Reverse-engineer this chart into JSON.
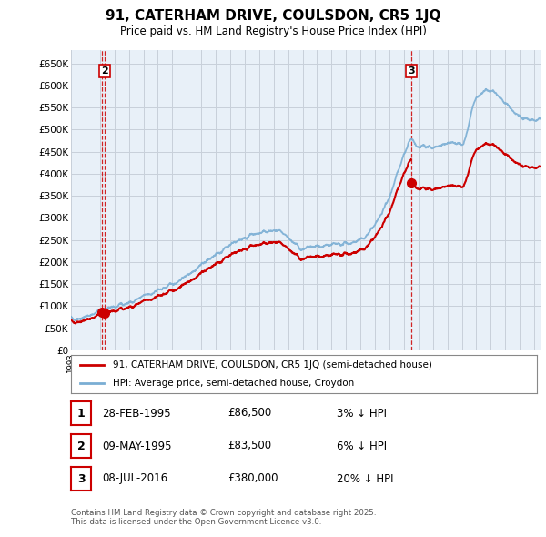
{
  "title1": "91, CATERHAM DRIVE, COULSDON, CR5 1JQ",
  "title2": "Price paid vs. HM Land Registry's House Price Index (HPI)",
  "ylim": [
    0,
    680000
  ],
  "yticks": [
    0,
    50000,
    100000,
    150000,
    200000,
    250000,
    300000,
    350000,
    400000,
    450000,
    500000,
    550000,
    600000,
    650000
  ],
  "ytick_labels": [
    "£0",
    "£50K",
    "£100K",
    "£150K",
    "£200K",
    "£250K",
    "£300K",
    "£350K",
    "£400K",
    "£450K",
    "£500K",
    "£550K",
    "£600K",
    "£650K"
  ],
  "background_color": "#ffffff",
  "chart_bg_color": "#e8f0f8",
  "grid_color": "#c8d0da",
  "sale_color": "#cc0000",
  "hpi_color": "#7aaed4",
  "transactions": [
    {
      "date_num": 1995.12,
      "price": 86500,
      "label": "1"
    },
    {
      "date_num": 1995.35,
      "price": 83500,
      "label": "2"
    },
    {
      "date_num": 2016.52,
      "price": 380000,
      "label": "3"
    }
  ],
  "legend_sale": "91, CATERHAM DRIVE, COULSDON, CR5 1JQ (semi-detached house)",
  "legend_hpi": "HPI: Average price, semi-detached house, Croydon",
  "table_rows": [
    {
      "num": "1",
      "date": "28-FEB-1995",
      "price": "£86,500",
      "pct": "3% ↓ HPI"
    },
    {
      "num": "2",
      "date": "09-MAY-1995",
      "price": "£83,500",
      "pct": "6% ↓ HPI"
    },
    {
      "num": "3",
      "date": "08-JUL-2016",
      "price": "£380,000",
      "pct": "20% ↓ HPI"
    }
  ],
  "footer": "Contains HM Land Registry data © Crown copyright and database right 2025.\nThis data is licensed under the Open Government Licence v3.0."
}
